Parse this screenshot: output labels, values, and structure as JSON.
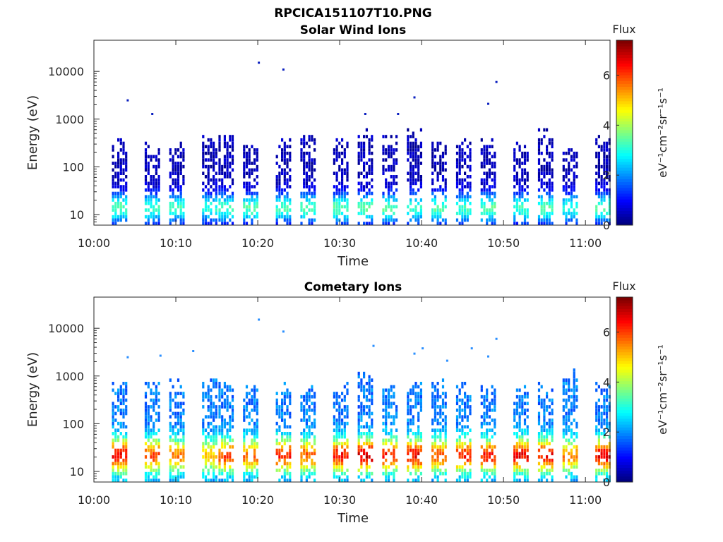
{
  "figure_title": "RPCICA151107T10.PNG",
  "colorbar": {
    "title": "Flux",
    "label": "eV⁻¹cm⁻²sr⁻¹s⁻¹",
    "range": [
      0,
      7.4
    ],
    "ticks": [
      "0",
      "2",
      "4",
      "6"
    ],
    "colormap": "jet"
  },
  "chart_data": [
    {
      "type": "heatmap",
      "title": "Solar Wind Ions",
      "xlabel": "Time",
      "ylabel": "Energy (eV)",
      "y_scale": "log",
      "xlim": [
        "10:00",
        "11:03"
      ],
      "ylim": [
        6,
        45000
      ],
      "x_ticks": [
        "10:00",
        "10:10",
        "10:20",
        "10:30",
        "10:40",
        "10:50",
        "11:00"
      ],
      "y_ticks": [
        "10",
        "100",
        "1000",
        "10000"
      ],
      "bursts": [
        {
          "t": "10:03",
          "top_eV": 300,
          "peak_flux": 3.4
        },
        {
          "t": "10:07",
          "top_eV": 250,
          "peak_flux": 3.2
        },
        {
          "t": "10:10",
          "top_eV": 250,
          "peak_flux": 3.2
        },
        {
          "t": "10:14",
          "top_eV": 350,
          "peak_flux": 3.0
        },
        {
          "t": "10:16",
          "top_eV": 350,
          "peak_flux": 3.2
        },
        {
          "t": "10:19",
          "top_eV": 250,
          "peak_flux": 3.4
        },
        {
          "t": "10:23",
          "top_eV": 300,
          "peak_flux": 3.2
        },
        {
          "t": "10:26",
          "top_eV": 400,
          "peak_flux": 3.4
        },
        {
          "t": "10:30",
          "top_eV": 300,
          "peak_flux": 3.4
        },
        {
          "t": "10:33",
          "top_eV": 500,
          "peak_flux": 3.4
        },
        {
          "t": "10:36",
          "top_eV": 350,
          "peak_flux": 3.4
        },
        {
          "t": "10:39",
          "top_eV": 500,
          "peak_flux": 3.2
        },
        {
          "t": "10:42",
          "top_eV": 300,
          "peak_flux": 3.4
        },
        {
          "t": "10:45",
          "top_eV": 300,
          "peak_flux": 3.2
        },
        {
          "t": "10:48",
          "top_eV": 300,
          "peak_flux": 3.4
        },
        {
          "t": "10:52",
          "top_eV": 250,
          "peak_flux": 3.2
        },
        {
          "t": "10:55",
          "top_eV": 500,
          "peak_flux": 3.4
        },
        {
          "t": "10:58",
          "top_eV": 200,
          "peak_flux": 3.0
        },
        {
          "t": "11:02",
          "top_eV": 350,
          "peak_flux": 3.4
        }
      ],
      "isolated_points": [
        {
          "t": "10:04",
          "eV": 2600
        },
        {
          "t": "10:07",
          "eV": 1350
        },
        {
          "t": "10:20",
          "eV": 16000
        },
        {
          "t": "10:23",
          "eV": 11500
        },
        {
          "t": "10:39",
          "eV": 3000
        },
        {
          "t": "10:48",
          "eV": 2200
        },
        {
          "t": "10:49",
          "eV": 6300
        },
        {
          "t": "10:33",
          "eV": 1350
        },
        {
          "t": "10:37",
          "eV": 1350
        }
      ]
    },
    {
      "type": "heatmap",
      "title": "Cometary Ions",
      "xlabel": "Time",
      "ylabel": "Energy (eV)",
      "y_scale": "log",
      "xlim": [
        "10:00",
        "11:03"
      ],
      "ylim": [
        6,
        45000
      ],
      "x_ticks": [
        "10:00",
        "10:10",
        "10:20",
        "10:30",
        "10:40",
        "10:50",
        "11:00"
      ],
      "y_ticks": [
        "10",
        "100",
        "1000",
        "10000"
      ],
      "bursts": [
        {
          "t": "10:03",
          "top_eV": 600,
          "peak_flux": 6.6
        },
        {
          "t": "10:07",
          "top_eV": 600,
          "peak_flux": 6.0
        },
        {
          "t": "10:10",
          "top_eV": 600,
          "peak_flux": 5.5
        },
        {
          "t": "10:14",
          "top_eV": 700,
          "peak_flux": 5.0
        },
        {
          "t": "10:16",
          "top_eV": 650,
          "peak_flux": 6.0
        },
        {
          "t": "10:19",
          "top_eV": 600,
          "peak_flux": 5.7
        },
        {
          "t": "10:23",
          "top_eV": 550,
          "peak_flux": 6.2
        },
        {
          "t": "10:26",
          "top_eV": 500,
          "peak_flux": 5.8
        },
        {
          "t": "10:30",
          "top_eV": 550,
          "peak_flux": 6.3
        },
        {
          "t": "10:33",
          "top_eV": 1000,
          "peak_flux": 6.8
        },
        {
          "t": "10:36",
          "top_eV": 550,
          "peak_flux": 6.3
        },
        {
          "t": "10:39",
          "top_eV": 600,
          "peak_flux": 6.5
        },
        {
          "t": "10:42",
          "top_eV": 600,
          "peak_flux": 5.8
        },
        {
          "t": "10:45",
          "top_eV": 550,
          "peak_flux": 6.2
        },
        {
          "t": "10:48",
          "top_eV": 500,
          "peak_flux": 6.3
        },
        {
          "t": "10:52",
          "top_eV": 500,
          "peak_flux": 6.5
        },
        {
          "t": "10:55",
          "top_eV": 550,
          "peak_flux": 6.4
        },
        {
          "t": "10:58",
          "top_eV": 1000,
          "peak_flux": 5.5
        },
        {
          "t": "11:02",
          "top_eV": 600,
          "peak_flux": 6.6
        }
      ],
      "isolated_points": [
        {
          "t": "10:04",
          "eV": 2600
        },
        {
          "t": "10:08",
          "eV": 2800
        },
        {
          "t": "10:12",
          "eV": 3500
        },
        {
          "t": "10:20",
          "eV": 16000
        },
        {
          "t": "10:23",
          "eV": 9000
        },
        {
          "t": "10:34",
          "eV": 4500
        },
        {
          "t": "10:40",
          "eV": 4000
        },
        {
          "t": "10:43",
          "eV": 2200
        },
        {
          "t": "10:46",
          "eV": 4000
        },
        {
          "t": "10:48",
          "eV": 2700
        },
        {
          "t": "10:49",
          "eV": 6300
        },
        {
          "t": "10:39",
          "eV": 3100
        }
      ]
    }
  ]
}
